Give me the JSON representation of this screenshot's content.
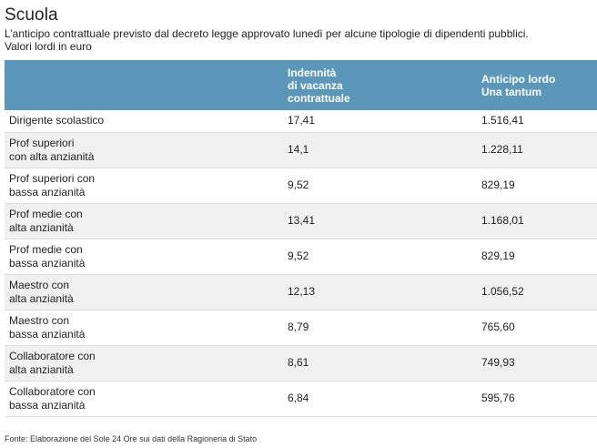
{
  "title": "Scuola",
  "subtitle": "L’anticipo contrattuale previsto dal decreto legge approvato lunedì per alcune tipologie di dipendenti pubblici.",
  "unit_note": "Valori lordi in euro",
  "table": {
    "headers": [
      {
        "lines": [
          ""
        ]
      },
      {
        "lines": [
          "Indennità",
          "di vacanza",
          "contrattuale"
        ]
      },
      {
        "lines": [
          "Anticipo lordo",
          "Una tantum"
        ]
      }
    ],
    "rows": [
      {
        "label": [
          "Dirigente scolastico"
        ],
        "indennita": "17,41",
        "anticipo": "1.516,41"
      },
      {
        "label": [
          "Prof superiori",
          "con alta anzianità"
        ],
        "indennita": "14,1",
        "anticipo": "1.228,11"
      },
      {
        "label": [
          "Prof superiori con",
          "bassa anzianità"
        ],
        "indennita": "9,52",
        "anticipo": "829,19"
      },
      {
        "label": [
          "Prof medie con",
          "alta anzianità"
        ],
        "indennita": "13,41",
        "anticipo": "1.168,01"
      },
      {
        "label": [
          "Prof medie con",
          "bassa anzianità"
        ],
        "indennita": "9,52",
        "anticipo": "829,19"
      },
      {
        "label": [
          "Maestro con",
          "alta anzianità"
        ],
        "indennita": "12,13",
        "anticipo": "1.056,52"
      },
      {
        "label": [
          "Maestro con",
          "bassa anzianità"
        ],
        "indennita": "8,79",
        "anticipo": "765,60"
      },
      {
        "label": [
          "Collaboratore con",
          "alta anzianità"
        ],
        "indennita": "8,61",
        "anticipo": "749,93"
      },
      {
        "label": [
          "Collaboratore con",
          "bassa anzianità"
        ],
        "indennita": "6,84",
        "anticipo": "595,76"
      }
    ]
  },
  "source": "Fonte: Elaborazione del Sole 24 Ore sui dati della Ragioneria di Stato",
  "colors": {
    "header_bg": "#5b97b9",
    "header_text": "#ffffff",
    "row_alt_bg": "#f0f0f0"
  }
}
